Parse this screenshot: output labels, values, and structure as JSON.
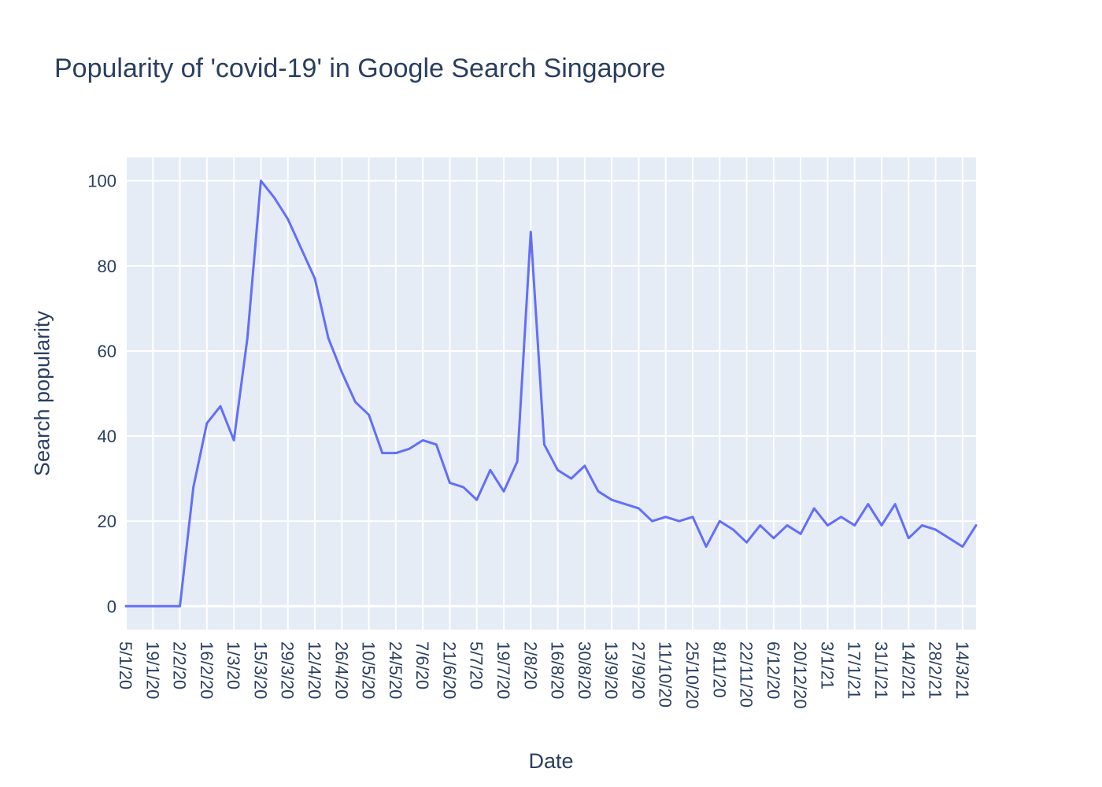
{
  "chart_data": {
    "type": "line",
    "title": "Popularity of 'covid-19' in Google Search Singapore",
    "xlabel": "Date",
    "ylabel": "Search popularity",
    "x_tick_labels": [
      "5/1/20",
      "19/1/20",
      "2/2/20",
      "16/2/20",
      "1/3/20",
      "15/3/20",
      "29/3/20",
      "12/4/20",
      "26/4/20",
      "10/5/20",
      "24/5/20",
      "7/6/20",
      "21/6/20",
      "5/7/20",
      "19/7/20",
      "2/8/20",
      "16/8/20",
      "30/8/20",
      "13/9/20",
      "27/9/20",
      "11/10/20",
      "25/10/20",
      "8/11/20",
      "22/11/20",
      "6/12/20",
      "20/12/20",
      "3/1/21",
      "17/1/21",
      "31/1/21",
      "14/2/21",
      "28/2/21",
      "14/3/21"
    ],
    "y_tick_labels": [
      "0",
      "20",
      "40",
      "60",
      "80",
      "100"
    ],
    "y_ticks": [
      0,
      20,
      40,
      60,
      80,
      100
    ],
    "ylim": [
      -5.5,
      105.5
    ],
    "xlim": [
      "5/1/20",
      "21/3/21"
    ],
    "x": [
      "5/1/20",
      "12/1/20",
      "19/1/20",
      "26/1/20",
      "2/2/20",
      "9/2/20",
      "16/2/20",
      "23/2/20",
      "1/3/20",
      "8/3/20",
      "15/3/20",
      "22/3/20",
      "29/3/20",
      "5/4/20",
      "12/4/20",
      "19/4/20",
      "26/4/20",
      "3/5/20",
      "10/5/20",
      "17/5/20",
      "24/5/20",
      "31/5/20",
      "7/6/20",
      "14/6/20",
      "21/6/20",
      "28/6/20",
      "5/7/20",
      "12/7/20",
      "19/7/20",
      "26/7/20",
      "2/8/20",
      "9/8/20",
      "16/8/20",
      "23/8/20",
      "30/8/20",
      "6/9/20",
      "13/9/20",
      "20/9/20",
      "27/9/20",
      "4/10/20",
      "11/10/20",
      "18/10/20",
      "25/10/20",
      "1/11/20",
      "8/11/20",
      "15/11/20",
      "22/11/20",
      "29/11/20",
      "6/12/20",
      "13/12/20",
      "20/12/20",
      "27/12/20",
      "3/1/21",
      "10/1/21",
      "17/1/21",
      "24/1/21",
      "31/1/21",
      "7/2/21",
      "14/2/21",
      "21/2/21",
      "28/2/21",
      "7/3/21",
      "14/3/21",
      "21/3/21"
    ],
    "series": [
      {
        "color": "#636efa",
        "values": [
          0,
          0,
          0,
          0,
          0,
          28,
          43,
          47,
          39,
          63,
          100,
          96,
          91,
          84,
          77,
          63,
          55,
          48,
          45,
          36,
          36,
          37,
          39,
          38,
          29,
          28,
          25,
          32,
          27,
          34,
          88,
          38,
          32,
          30,
          33,
          27,
          25,
          24,
          23,
          20,
          21,
          20,
          21,
          14,
          20,
          18,
          15,
          19,
          16,
          19,
          17,
          23,
          19,
          21,
          19,
          24,
          19,
          24,
          16,
          19,
          18,
          16,
          14,
          19
        ]
      }
    ],
    "grid": true,
    "legend": "none",
    "plot_background": "#e5ecf6",
    "grid_color": "#ffffff"
  }
}
